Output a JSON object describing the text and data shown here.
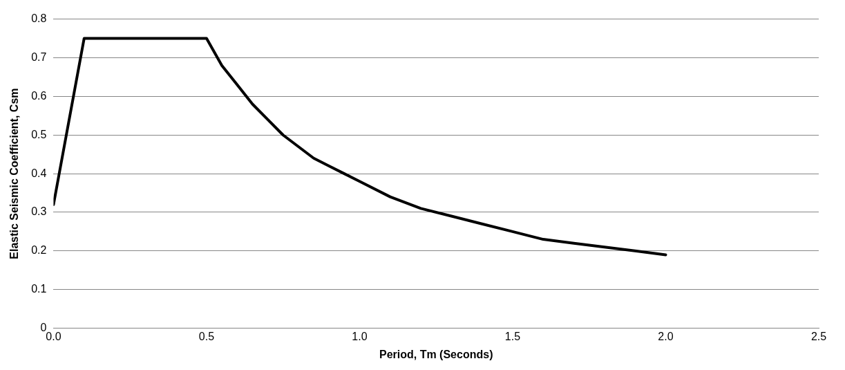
{
  "chart_data": {
    "type": "line",
    "xlabel": "Period, Tm (Seconds)",
    "ylabel": "Elastic Seismic Coefficient, Csm",
    "x": [
      0,
      0.1,
      0.5,
      0.55,
      0.6,
      0.65,
      0.7,
      0.75,
      0.8,
      0.85,
      0.9,
      0.95,
      1.0,
      1.1,
      1.2,
      1.3,
      1.4,
      1.5,
      1.6,
      1.7,
      1.8,
      1.9,
      2.0
    ],
    "series": [
      {
        "color": "#000000",
        "values": [
          0.32,
          0.75,
          0.75,
          0.68,
          0.63,
          0.58,
          0.54,
          0.5,
          0.47,
          0.44,
          0.42,
          0.4,
          0.38,
          0.34,
          0.31,
          0.29,
          0.27,
          0.25,
          0.23,
          0.22,
          0.21,
          0.2,
          0.19
        ]
      }
    ],
    "xlim": [
      0,
      2.5
    ],
    "xticks": [
      {
        "value": 0,
        "label": "0.0"
      },
      {
        "value": 0.5,
        "label": "0.5"
      },
      {
        "value": 1,
        "label": "1.0"
      },
      {
        "value": 1.5,
        "label": "1.5"
      },
      {
        "value": 2,
        "label": "2.0"
      },
      {
        "value": 2.5,
        "label": "2.5"
      }
    ],
    "ylim": [
      0,
      0.8
    ],
    "yticks": [
      0,
      0.1,
      0.2,
      0.3,
      0.4,
      0.5,
      0.6,
      0.7,
      0.8
    ],
    "grid": "y",
    "legend": false,
    "marker": "none",
    "line_style": "solid"
  }
}
